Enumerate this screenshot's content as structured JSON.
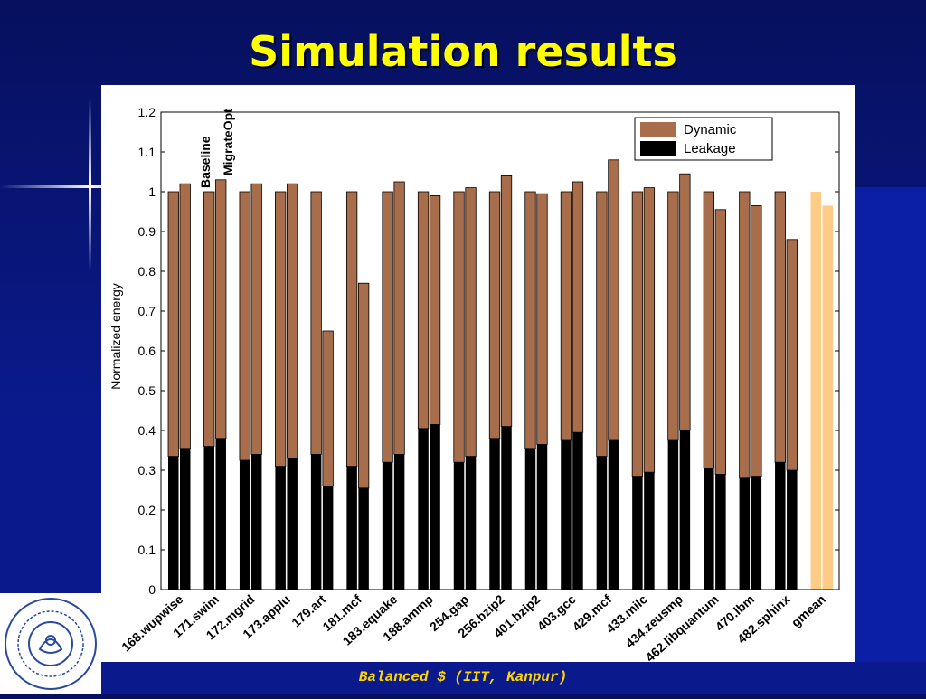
{
  "slide": {
    "title": "Simulation results",
    "footer": "Balanced $ (IIT, Kanpur)"
  },
  "colors": {
    "dynamic": "#a86d4a",
    "leakage": "#000000",
    "gmean": "#ffcc88",
    "title": "#ffff00",
    "footer": "#ffd700"
  },
  "chart_data": {
    "type": "bar",
    "stacked": true,
    "ylabel": "Normalized energy",
    "ylim": [
      0,
      1.2
    ],
    "yticks": [
      "0",
      "0.1",
      "0.2",
      "0.3",
      "0.4",
      "0.5",
      "0.6",
      "0.7",
      "0.8",
      "0.9",
      "1",
      "1.1",
      "1.2"
    ],
    "legend": {
      "position": "top-right",
      "entries": [
        "Dynamic",
        "Leakage"
      ]
    },
    "bar_labels": [
      "Baseline",
      "MigrateOpt"
    ],
    "categories": [
      "168.wupwise",
      "171.swim",
      "172.mgrid",
      "173.applu",
      "179.art",
      "181.mcf",
      "183.equake",
      "188.ammp",
      "254.gap",
      "256.bzip2",
      "401.bzip2",
      "403.gcc",
      "429.mcf",
      "433.milc",
      "434.zeusmp",
      "462.libquantum",
      "470.lbm",
      "482.sphinx",
      "gmean"
    ],
    "series": [
      {
        "name": "Baseline",
        "total": [
          1.0,
          1.0,
          1.0,
          1.0,
          1.0,
          1.0,
          1.0,
          1.0,
          1.0,
          1.0,
          1.0,
          1.0,
          1.0,
          1.0,
          1.0,
          1.0,
          1.0,
          1.0,
          1.0
        ],
        "leakage": [
          0.335,
          0.36,
          0.325,
          0.31,
          0.34,
          0.31,
          0.32,
          0.405,
          0.32,
          0.38,
          0.355,
          0.375,
          0.335,
          0.285,
          0.375,
          0.305,
          0.28,
          0.32,
          null
        ]
      },
      {
        "name": "MigrateOpt",
        "total": [
          1.02,
          1.03,
          1.02,
          1.02,
          0.65,
          0.77,
          1.025,
          0.99,
          1.01,
          1.04,
          0.995,
          1.025,
          1.08,
          1.01,
          1.045,
          0.955,
          0.965,
          0.88,
          0.965
        ],
        "leakage": [
          0.355,
          0.38,
          0.34,
          0.33,
          0.26,
          0.255,
          0.34,
          0.415,
          0.335,
          0.41,
          0.365,
          0.395,
          0.375,
          0.295,
          0.4,
          0.29,
          0.285,
          0.3,
          null
        ]
      }
    ]
  }
}
